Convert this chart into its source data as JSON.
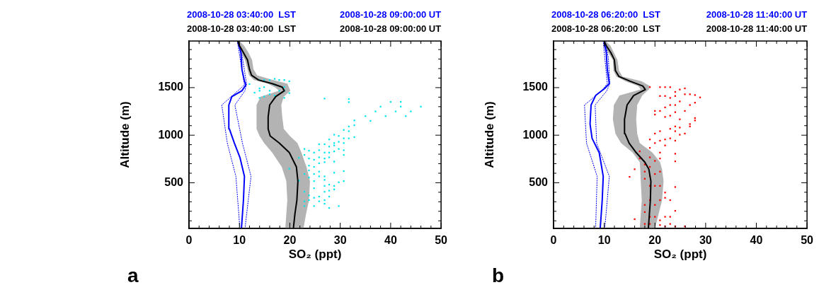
{
  "chart_data": [
    {
      "type": "line",
      "title": "a",
      "orientation": "horizontal",
      "xlabel": "SO₂ (ppt)",
      "ylabel": "Altitude (m)",
      "annotations": [
        "2008-10-28 03:40:00  LST",
        "2008-10-28 09:00:00 UT",
        "2008-10-28 03:40:00  LST",
        "2008-10-28 09:00:00 UT"
      ],
      "xlim": [
        0,
        50
      ],
      "ylim": [
        20,
        1990
      ],
      "xticks": [
        0,
        {
          "value": 2,
          "label": null
        },
        {
          "value": 4,
          "label": null
        },
        {
          "value": 6,
          "label": null
        },
        {
          "value": 8,
          "label": null
        },
        10,
        {
          "value": 12,
          "label": null
        },
        {
          "value": 14,
          "label": null
        },
        {
          "value": 16,
          "label": null
        },
        {
          "value": 18,
          "label": null
        },
        20,
        {
          "value": 22,
          "label": null
        },
        {
          "value": 24,
          "label": null
        },
        {
          "value": 26,
          "label": null
        },
        {
          "value": 28,
          "label": null
        },
        30,
        {
          "value": 32,
          "label": null
        },
        {
          "value": 34,
          "label": null
        },
        {
          "value": 36,
          "label": null
        },
        {
          "value": 38,
          "label": null
        },
        40,
        {
          "value": 42,
          "label": null
        },
        {
          "value": 44,
          "label": null
        },
        {
          "value": 46,
          "label": null
        },
        {
          "value": 48,
          "label": null
        },
        50
      ],
      "yticks": [
        {
          "value": 100,
          "label": null
        },
        {
          "value": 200,
          "label": null
        },
        {
          "value": 300,
          "label": null
        },
        {
          "value": 400,
          "label": null
        },
        500,
        {
          "value": 600,
          "label": null
        },
        {
          "value": 700,
          "label": null
        },
        {
          "value": 800,
          "label": null
        },
        {
          "value": 900,
          "label": null
        },
        1000,
        {
          "value": 1100,
          "label": null
        },
        {
          "value": 1200,
          "label": null
        },
        {
          "value": 1300,
          "label": null
        },
        {
          "value": 1400,
          "label": null
        },
        1500,
        {
          "value": 1600,
          "label": null
        },
        {
          "value": 1700,
          "label": null
        },
        {
          "value": 1800,
          "label": null
        },
        {
          "value": 1900,
          "label": null
        }
      ],
      "series": [
        {
          "type": "line",
          "color": "#000000",
          "marker": "none",
          "line_style": "solid",
          "x": [
            17,
            167,
            317,
            517,
            667,
            817,
            917,
            992,
            1067,
            1192,
            1317,
            1405,
            1467,
            1505,
            1542,
            1580,
            1630,
            1692,
            1792,
            1867,
            1942,
            1985
          ],
          "values": [
            20.7,
            21.0,
            21.4,
            21.6,
            21.3,
            19.9,
            17.9,
            16.1,
            15.7,
            15.7,
            16.0,
            17.2,
            18.9,
            18.5,
            16.5,
            13.8,
            12.4,
            12.0,
            11.6,
            10.8,
            10.0,
            9.7
          ],
          "lower": [
            19.1,
            19.3,
            19.5,
            19.3,
            18.4,
            16.5,
            14.9,
            14.0,
            13.4,
            13.4,
            13.4,
            14.2,
            17.9,
            17.0,
            15.6,
            12.9,
            11.9,
            11.6,
            11.1,
            10.3,
            9.8,
            9.6
          ],
          "upper": [
            22.7,
            23.2,
            23.8,
            24.0,
            23.3,
            22.3,
            21.5,
            20.0,
            18.8,
            18.5,
            18.3,
            18.8,
            20.1,
            19.8,
            19.5,
            16.7,
            13.5,
            12.8,
            12.5,
            11.8,
            10.9,
            10.1
          ]
        },
        {
          "type": "line",
          "color": "#0000ff",
          "marker": "none",
          "line_style": "solid",
          "x": [
            17,
            317,
            567,
            767,
            917,
            1067,
            1317,
            1405,
            1467,
            1530,
            1567,
            1692,
            1867,
            1985
          ],
          "values": [
            10.4,
            10.8,
            11.0,
            10.1,
            9.0,
            8.0,
            7.9,
            8.5,
            10.5,
            11.3,
            11.0,
            10.5,
            10.3,
            9.7
          ]
        },
        {
          "type": "line",
          "color": "#0000ff",
          "marker": "none",
          "line_style": "dotted",
          "x": [
            17,
            567,
            917,
            1317,
            1467,
            1530,
            1817,
            1985
          ],
          "values": [
            10.1,
            9.3,
            7.6,
            6.5,
            9.7,
            11.0,
            10.1,
            9.6
          ]
        },
        {
          "type": "line",
          "color": "#0000ff",
          "marker": "none",
          "line_style": "dotted",
          "x": [
            17,
            567,
            917,
            1317,
            1467,
            1542,
            1817,
            1985
          ],
          "values": [
            11.1,
            12.3,
            10.6,
            9.1,
            11.1,
            11.4,
            10.6,
            9.8
          ]
        },
        {
          "type": "scatter",
          "color": "#00e5ee",
          "marker": "square",
          "x": [
            1537,
            1447,
            1580,
            1492,
            1467,
            1392,
            1580,
            1505,
            1405,
            1580,
            1467,
            1430,
            1592,
            1530,
            1417,
            1580,
            1467,
            1580,
            1505,
            1467,
            1567,
            1442,
            1392,
            1385,
            1380,
            1347,
            1155,
            1105,
            1092,
            1042,
            980,
            967,
            1055,
            992,
            967,
            917,
            1005,
            917,
            955,
            880,
            842,
            792,
            930,
            855,
            892,
            830,
            722,
            817,
            767,
            905,
            817,
            755,
            717,
            905,
            842,
            767,
            705,
            817,
            742,
            837,
            855,
            792,
            762,
            755,
            647,
            680,
            630,
            555,
            592,
            522,
            667,
            592,
            517,
            617,
            567,
            567,
            530,
            605,
            622,
            517,
            505,
            467,
            480,
            467,
            405,
            417,
            355,
            430,
            442,
            342,
            255,
            355,
            305,
            367,
            317,
            405,
            305,
            255,
            317,
            280,
            235,
            255,
            1300,
            1350,
            1250,
            1300,
            1200,
            1250,
            1300,
            1350,
            1200,
            1250,
            1150,
            1200
          ],
          "values": [
            12.0,
            13.0,
            14.0,
            14.0,
            14.0,
            14.0,
            14.9,
            14.9,
            14.9,
            16.0,
            16.0,
            16.0,
            17.0,
            17.0,
            17.0,
            17.9,
            17.9,
            18.9,
            18.9,
            18.9,
            19.9,
            19.9,
            18.9,
            26.9,
            31.7,
            31.7,
            32.8,
            32.8,
            31.7,
            31.7,
            32.8,
            31.7,
            30.7,
            29.7,
            30.7,
            30.7,
            28.8,
            28.8,
            27.8,
            27.8,
            30.7,
            30.7,
            29.7,
            29.7,
            28.8,
            28.8,
            28.8,
            27.8,
            27.8,
            26.9,
            26.9,
            26.9,
            26.9,
            25.8,
            25.8,
            25.8,
            25.8,
            24.8,
            24.8,
            23.8,
            22.9,
            22.9,
            21.8,
            23.8,
            19.9,
            23.8,
            23.8,
            23.8,
            22.9,
            21.8,
            24.8,
            24.8,
            24.8,
            25.8,
            25.8,
            26.9,
            26.9,
            28.8,
            30.7,
            30.7,
            29.7,
            28.8,
            27.8,
            26.9,
            26.9,
            27.8,
            27.8,
            28.8,
            24.8,
            24.8,
            24.8,
            25.8,
            25.8,
            23.8,
            23.8,
            22.9,
            22.9,
            22.9,
            26.9,
            26.9,
            27.8,
            29.7,
            38,
            40,
            41,
            42,
            43,
            44,
            46,
            42,
            39,
            37,
            36,
            35
          ]
        }
      ]
    },
    {
      "type": "line",
      "title": "b",
      "orientation": "horizontal",
      "xlabel": "SO₂ (ppt)",
      "ylabel": "Altitude (m)",
      "annotations": [
        "2008-10-28 06:20:00  LST",
        "2008-10-28 11:40:00 UT",
        "2008-10-28 06:20:00  LST",
        "2008-10-28 11:40:00 UT"
      ],
      "xlim": [
        0,
        50
      ],
      "ylim": [
        20,
        1990
      ],
      "xticks": [
        0,
        {
          "value": 2,
          "label": null
        },
        {
          "value": 4,
          "label": null
        },
        {
          "value": 6,
          "label": null
        },
        {
          "value": 8,
          "label": null
        },
        10,
        {
          "value": 12,
          "label": null
        },
        {
          "value": 14,
          "label": null
        },
        {
          "value": 16,
          "label": null
        },
        {
          "value": 18,
          "label": null
        },
        20,
        {
          "value": 22,
          "label": null
        },
        {
          "value": 24,
          "label": null
        },
        {
          "value": 26,
          "label": null
        },
        {
          "value": 28,
          "label": null
        },
        30,
        {
          "value": 32,
          "label": null
        },
        {
          "value": 34,
          "label": null
        },
        {
          "value": 36,
          "label": null
        },
        {
          "value": 38,
          "label": null
        },
        40,
        {
          "value": 42,
          "label": null
        },
        {
          "value": 44,
          "label": null
        },
        {
          "value": 46,
          "label": null
        },
        {
          "value": 48,
          "label": null
        },
        50
      ],
      "yticks": [
        {
          "value": 100,
          "label": null
        },
        {
          "value": 200,
          "label": null
        },
        {
          "value": 300,
          "label": null
        },
        {
          "value": 400,
          "label": null
        },
        500,
        {
          "value": 600,
          "label": null
        },
        {
          "value": 700,
          "label": null
        },
        {
          "value": 800,
          "label": null
        },
        {
          "value": 900,
          "label": null
        },
        1000,
        {
          "value": 1100,
          "label": null
        },
        {
          "value": 1200,
          "label": null
        },
        {
          "value": 1300,
          "label": null
        },
        {
          "value": 1400,
          "label": null
        },
        1500,
        {
          "value": 1600,
          "label": null
        },
        {
          "value": 1700,
          "label": null
        },
        {
          "value": 1800,
          "label": null
        },
        {
          "value": 1900,
          "label": null
        }
      ],
      "series": [
        {
          "type": "line",
          "color": "#000000",
          "marker": "none",
          "line_style": "solid",
          "x": [
            17,
            167,
            317,
            517,
            642,
            717,
            817,
            917,
            1017,
            1167,
            1317,
            1417,
            1480,
            1517,
            1567,
            1617,
            1680,
            1792,
            1867,
            1942,
            1985
          ],
          "values": [
            18.7,
            18.9,
            19.1,
            19.2,
            18.8,
            18.0,
            16.3,
            14.9,
            14.1,
            14.0,
            14.5,
            15.8,
            18.1,
            17.6,
            15.1,
            12.9,
            12.2,
            12.0,
            11.3,
            10.4,
            10.0
          ],
          "lower": [
            17.0,
            17.2,
            17.4,
            17.2,
            17.1,
            17.0,
            15.6,
            13.3,
            12.2,
            11.7,
            11.9,
            13.0,
            17.2,
            16.7,
            14.2,
            12.4,
            11.8,
            11.7,
            10.8,
            10.0,
            9.8
          ],
          "upper": [
            20.0,
            20.7,
            21.4,
            21.7,
            21.4,
            21.0,
            19.5,
            17.0,
            16.5,
            16.3,
            16.5,
            17.5,
            18.8,
            19.0,
            17.4,
            13.6,
            12.9,
            12.6,
            11.9,
            11.2,
            10.4
          ]
        },
        {
          "type": "line",
          "color": "#0000ff",
          "marker": "none",
          "line_style": "solid",
          "x": [
            17,
            317,
            567,
            817,
            967,
            1117,
            1317,
            1417,
            1492,
            1542,
            1692,
            1867,
            1985
          ],
          "values": [
            9.2,
            9.6,
            9.8,
            9.0,
            7.6,
            7.2,
            7.4,
            8.3,
            10.1,
            11.0,
            10.6,
            10.4,
            10.0
          ]
        },
        {
          "type": "line",
          "color": "#0000ff",
          "marker": "none",
          "line_style": "dotted",
          "x": [
            17,
            567,
            917,
            1317,
            1467,
            1542,
            1817,
            1985
          ],
          "values": [
            8.3,
            8.6,
            6.5,
            6.1,
            9.5,
            10.6,
            10.1,
            9.8
          ]
        },
        {
          "type": "line",
          "color": "#0000ff",
          "marker": "none",
          "line_style": "dotted",
          "x": [
            17,
            567,
            917,
            1317,
            1467,
            1542,
            1817,
            1985
          ],
          "values": [
            10.1,
            11.0,
            8.5,
            8.2,
            10.5,
            11.1,
            10.8,
            10.2
          ]
        },
        {
          "type": "scatter",
          "color": "#ff0000",
          "marker": "square",
          "x": [
            1505,
            1505,
            1505,
            1505,
            1455,
            1480,
            1492,
            1412,
            1412,
            1392,
            1412,
            1355,
            1430,
            1430,
            1317,
            1422,
            1342,
            1397,
            1255,
            1255,
            1292,
            1317,
            1317,
            1242,
            1255,
            1217,
            1192,
            1205,
            1167,
            1180,
            1155,
            1067,
            1092,
            1042,
            1080,
            1017,
            1117,
            1092,
            1005,
            1042,
            1017,
            955,
            867,
            917,
            942,
            955,
            967,
            892,
            942,
            805,
            817,
            755,
            725,
            830,
            755,
            692,
            767,
            730,
            667,
            562,
            642,
            617,
            542,
            567,
            592,
            617,
            467,
            467,
            467,
            397,
            342,
            317,
            267,
            267,
            317,
            317,
            455,
            192,
            142,
            142,
            105,
            117,
            142,
            142,
            205,
            42,
            67,
            42,
            67,
            55,
            67,
            42
          ],
          "values": [
            19.0,
            21.0,
            22.0,
            23.0,
            24.0,
            24.9,
            25.9,
            21.0,
            22.0,
            23.0,
            24.0,
            24.9,
            25.9,
            26.9,
            26.9,
            27.9,
            27.9,
            28.9,
            20.0,
            21.0,
            22.0,
            23.0,
            24.0,
            24.0,
            25.9,
            20.0,
            22.0,
            23.0,
            24.9,
            27.9,
            27.9,
            23.0,
            24.0,
            24.0,
            24.9,
            25.9,
            26.9,
            26.9,
            24.9,
            21.0,
            20.0,
            19.0,
            19.0,
            20.0,
            21.0,
            22.0,
            23.0,
            22.0,
            24.0,
            24.0,
            21.0,
            21.0,
            24.0,
            17.0,
            17.0,
            18.0,
            19.0,
            20.0,
            19.0,
            15.0,
            16.0,
            18.0,
            18.0,
            19.0,
            20.0,
            21.0,
            21.0,
            19.0,
            20.0,
            22.0,
            22.0,
            19.0,
            18.0,
            20.0,
            21.0,
            23.0,
            24.0,
            18.0,
            19.0,
            20.0,
            21.0,
            16.0,
            22.0,
            23.0,
            24.0,
            24.0,
            23.0,
            25.9,
            19.0,
            21.0,
            18.0,
            22.0
          ]
        }
      ]
    }
  ]
}
